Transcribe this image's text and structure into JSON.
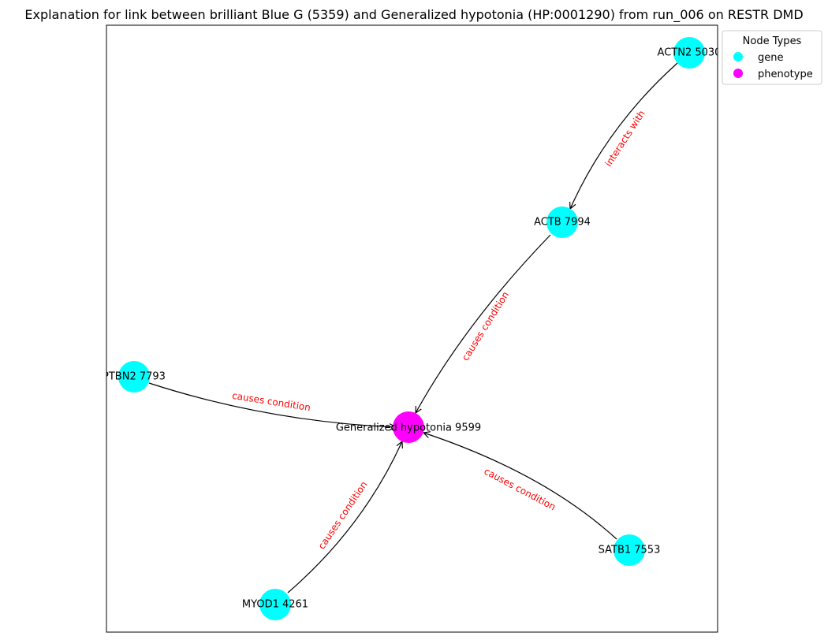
{
  "title": "Explanation for link between brilliant Blue G (5359) and Generalized hypotonia (HP:0001290) from run_006 on RESTR DMD",
  "colors": {
    "gene": "#00ffff",
    "phenotype": "#ff00ff",
    "edge": "#000000",
    "edge_label": "#ff0000"
  },
  "legend": {
    "title": "Node Types",
    "items": [
      {
        "label": "gene",
        "type": "gene"
      },
      {
        "label": "phenotype",
        "type": "phenotype"
      }
    ]
  },
  "nodes": [
    {
      "id": "actn2",
      "label": "ACTN2 5030",
      "type": "gene"
    },
    {
      "id": "actb",
      "label": "ACTB 7994",
      "type": "gene"
    },
    {
      "id": "ptbn2",
      "label": "PTBN2 7793",
      "type": "gene"
    },
    {
      "id": "hypotonia",
      "label": "Generalized hypotonia 9599",
      "type": "phenotype"
    },
    {
      "id": "myod1",
      "label": "MYOD1 4261",
      "type": "gene"
    },
    {
      "id": "satb1",
      "label": "SATB1 7553",
      "type": "gene"
    }
  ],
  "edges": [
    {
      "source": "actn2",
      "target": "actb",
      "label": "interacts with"
    },
    {
      "source": "actb",
      "target": "hypotonia",
      "label": "causes condition"
    },
    {
      "source": "ptbn2",
      "target": "hypotonia",
      "label": "causes condition"
    },
    {
      "source": "myod1",
      "target": "hypotonia",
      "label": "causes condition"
    },
    {
      "source": "satb1",
      "target": "hypotonia",
      "label": "causes condition"
    }
  ]
}
